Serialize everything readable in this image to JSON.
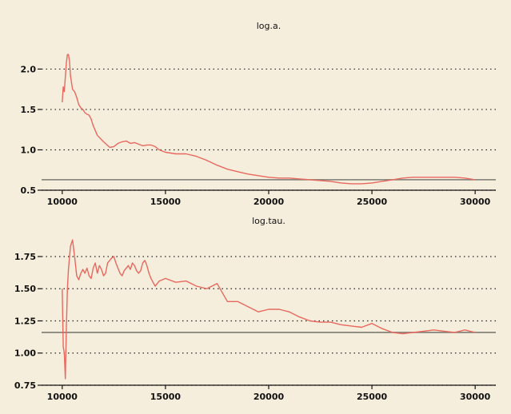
{
  "background_color": "#f5eedc",
  "chart_data": [
    {
      "type": "line",
      "title": "log.a.",
      "xlim": [
        9000,
        31000
      ],
      "ylim": [
        0.5,
        2.4
      ],
      "x_ticks": [
        10000,
        15000,
        20000,
        25000,
        30000
      ],
      "x_tick_labels": [
        "10000",
        "15000",
        "20000",
        "25000",
        "30000"
      ],
      "y_ticks": [
        0.5,
        1.0,
        1.5,
        2.0
      ],
      "y_tick_labels": [
        "0.5",
        "1.0",
        "1.5",
        "2.0"
      ],
      "grid": "horizontal dotted",
      "reference_line": 0.63,
      "line_color": "#e8685f",
      "reference_color": "#7a7a72",
      "x": [
        10000,
        10050,
        10100,
        10150,
        10200,
        10250,
        10300,
        10350,
        10400,
        10500,
        10600,
        10700,
        10800,
        10900,
        11000,
        11100,
        11200,
        11300,
        11400,
        11500,
        11700,
        12000,
        12300,
        12500,
        12700,
        12900,
        13100,
        13300,
        13500,
        13700,
        13900,
        14100,
        14300,
        14500,
        14700,
        15000,
        15500,
        16000,
        16500,
        17000,
        17500,
        18000,
        18500,
        19000,
        19500,
        20000,
        20500,
        21000,
        21500,
        22000,
        22500,
        23000,
        23500,
        24000,
        24500,
        25000,
        25500,
        26000,
        26500,
        27000,
        27500,
        28000,
        28500,
        29000,
        29500,
        30000
      ],
      "y": [
        1.59,
        1.78,
        1.72,
        1.9,
        2.08,
        2.18,
        2.18,
        2.1,
        1.92,
        1.75,
        1.72,
        1.65,
        1.56,
        1.52,
        1.5,
        1.46,
        1.44,
        1.43,
        1.38,
        1.3,
        1.18,
        1.1,
        1.03,
        1.04,
        1.08,
        1.1,
        1.11,
        1.08,
        1.09,
        1.07,
        1.05,
        1.06,
        1.06,
        1.04,
        1.0,
        0.97,
        0.95,
        0.95,
        0.92,
        0.87,
        0.81,
        0.76,
        0.73,
        0.7,
        0.68,
        0.66,
        0.65,
        0.65,
        0.64,
        0.63,
        0.62,
        0.61,
        0.59,
        0.58,
        0.58,
        0.59,
        0.61,
        0.63,
        0.65,
        0.66,
        0.66,
        0.66,
        0.66,
        0.66,
        0.65,
        0.63
      ]
    },
    {
      "type": "line",
      "title": "log.tau.",
      "xlim": [
        9000,
        31000
      ],
      "ylim": [
        0.75,
        1.93
      ],
      "x_ticks": [
        10000,
        15000,
        20000,
        25000,
        30000
      ],
      "x_tick_labels": [
        "10000",
        "15000",
        "20000",
        "25000",
        "30000"
      ],
      "y_ticks": [
        0.75,
        1.0,
        1.25,
        1.5,
        1.75
      ],
      "y_tick_labels": [
        "0.75",
        "1.00",
        "1.25",
        "1.50",
        "1.75"
      ],
      "grid": "horizontal dotted",
      "reference_line": 1.16,
      "line_color": "#e8685f",
      "reference_color": "#7a7a72",
      "x": [
        10000,
        10050,
        10100,
        10150,
        10200,
        10250,
        10300,
        10400,
        10500,
        10600,
        10700,
        10800,
        10900,
        11000,
        11100,
        11200,
        11300,
        11400,
        11500,
        11600,
        11700,
        11800,
        11900,
        12000,
        12100,
        12200,
        12300,
        12400,
        12500,
        12600,
        12700,
        12800,
        12900,
        13000,
        13100,
        13200,
        13300,
        13400,
        13500,
        13600,
        13700,
        13800,
        13900,
        14000,
        14100,
        14200,
        14300,
        14500,
        14700,
        15000,
        15500,
        16000,
        16500,
        17000,
        17500,
        18000,
        18500,
        19000,
        19500,
        20000,
        20500,
        21000,
        21500,
        22000,
        22500,
        23000,
        23500,
        24000,
        24500,
        25000,
        25500,
        26000,
        26500,
        27000,
        27500,
        28000,
        28500,
        29000,
        29500,
        30000
      ],
      "y": [
        1.5,
        1.05,
        1.0,
        0.8,
        1.2,
        1.5,
        1.65,
        1.83,
        1.88,
        1.75,
        1.6,
        1.57,
        1.62,
        1.65,
        1.62,
        1.66,
        1.6,
        1.58,
        1.66,
        1.7,
        1.62,
        1.68,
        1.65,
        1.6,
        1.62,
        1.7,
        1.72,
        1.74,
        1.75,
        1.7,
        1.66,
        1.62,
        1.6,
        1.64,
        1.66,
        1.68,
        1.65,
        1.7,
        1.68,
        1.64,
        1.62,
        1.64,
        1.7,
        1.72,
        1.68,
        1.62,
        1.58,
        1.52,
        1.56,
        1.58,
        1.55,
        1.56,
        1.52,
        1.5,
        1.54,
        1.4,
        1.4,
        1.36,
        1.32,
        1.34,
        1.34,
        1.32,
        1.28,
        1.25,
        1.24,
        1.24,
        1.22,
        1.21,
        1.2,
        1.23,
        1.19,
        1.16,
        1.15,
        1.16,
        1.17,
        1.18,
        1.17,
        1.16,
        1.18,
        1.16
      ]
    }
  ]
}
